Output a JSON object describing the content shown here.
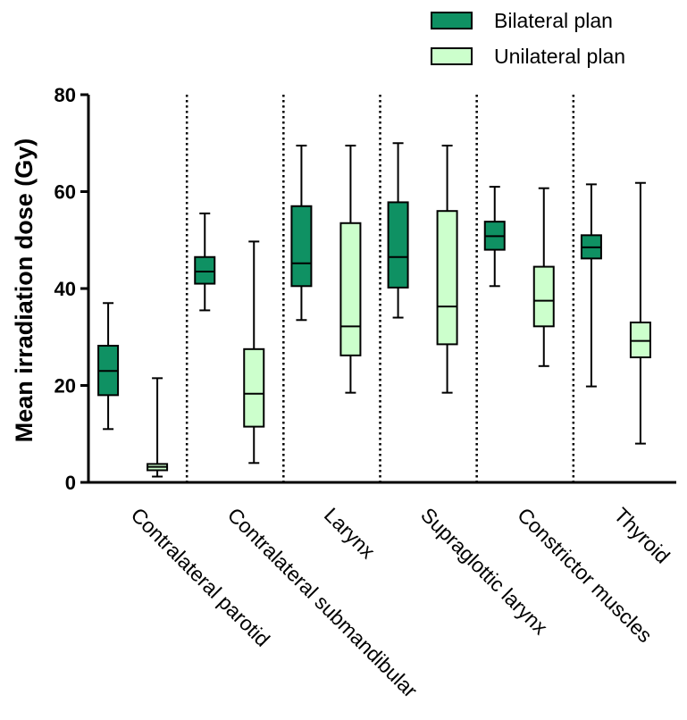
{
  "chart_data": {
    "type": "boxplot",
    "title": "",
    "ylabel": "Mean irradiation dose (Gy)",
    "xlabel": "",
    "ylim": [
      0,
      80
    ],
    "yticks": [
      0,
      20,
      40,
      60,
      80
    ],
    "legend_position": "top-right",
    "separators": "dotted vertical lines between groups",
    "categories": [
      "Contralateral parotid",
      "Contralateral submandibular",
      "Larynx",
      "Supraglottic larynx",
      "Constrictor muscles",
      "Thyroid"
    ],
    "series": [
      {
        "name": "Bilateral plan",
        "color": "#0f9163",
        "boxes": [
          {
            "min": 11,
            "q1": 18,
            "median": 23,
            "q3": 28.2,
            "max": 37
          },
          {
            "min": 35.5,
            "q1": 41,
            "median": 43.5,
            "q3": 46.5,
            "max": 55.5
          },
          {
            "min": 33.5,
            "q1": 40.5,
            "median": 45.2,
            "q3": 57,
            "max": 69.5
          },
          {
            "min": 34,
            "q1": 40.2,
            "median": 46.5,
            "q3": 57.8,
            "max": 70
          },
          {
            "min": 40.5,
            "q1": 48,
            "median": 50.8,
            "q3": 53.8,
            "max": 61
          },
          {
            "min": 19.8,
            "q1": 46.2,
            "median": 48.5,
            "q3": 51,
            "max": 61.5
          }
        ]
      },
      {
        "name": "Unilateral plan",
        "color": "#ccffcc",
        "boxes": [
          {
            "min": 1.2,
            "q1": 2.5,
            "median": 3.2,
            "q3": 3.8,
            "max": 21.5
          },
          {
            "min": 4,
            "q1": 11.5,
            "median": 18.3,
            "q3": 27.5,
            "max": 49.7
          },
          {
            "min": 18.5,
            "q1": 26.2,
            "median": 32.2,
            "q3": 53.5,
            "max": 69.5
          },
          {
            "min": 18.5,
            "q1": 28.5,
            "median": 36.3,
            "q3": 56,
            "max": 69.5
          },
          {
            "min": 24,
            "q1": 32.2,
            "median": 37.5,
            "q3": 44.5,
            "max": 60.7
          },
          {
            "min": 8,
            "q1": 25.8,
            "median": 29.2,
            "q3": 33,
            "max": 61.8
          }
        ]
      }
    ]
  }
}
